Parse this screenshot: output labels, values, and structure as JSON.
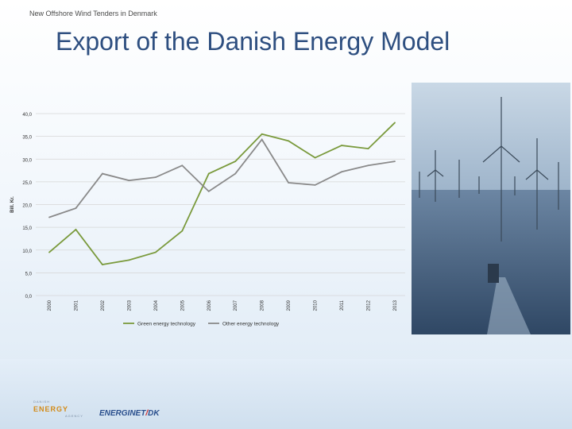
{
  "header": {
    "subtitle": "New Offshore Wind Tenders in Denmark",
    "title": "Export of the Danish Energy Model"
  },
  "chart_data": {
    "type": "line",
    "ylabel": "Bill. Kr.",
    "ylim": [
      0,
      40
    ],
    "yticks": [
      "0,0",
      "5,0",
      "10,0",
      "15,0",
      "20,0",
      "25,0",
      "30,0",
      "35,0",
      "40,0"
    ],
    "categories": [
      "2000",
      "2001",
      "2002",
      "2003",
      "2004",
      "2005",
      "2006",
      "2007",
      "2008",
      "2009",
      "2010",
      "2011",
      "2012",
      "2013"
    ],
    "legend_position": "bottom",
    "grid": true,
    "series": [
      {
        "name": "Green energy technology",
        "color": "#7a9a3c",
        "values": [
          9.5,
          14.5,
          6.8,
          7.8,
          9.5,
          14.2,
          26.8,
          29.5,
          35.5,
          34.0,
          30.3,
          33.0,
          32.3,
          38.0
        ]
      },
      {
        "name": "Other energy technology",
        "color": "#8a8a8a",
        "values": [
          17.2,
          19.2,
          26.8,
          25.3,
          26.0,
          28.6,
          22.9,
          26.8,
          34.3,
          24.8,
          24.3,
          27.2,
          28.6,
          29.5
        ]
      }
    ]
  },
  "logos": {
    "energy_agency": {
      "pre": "DANISH",
      "main": "ENERGY",
      "post": "AGENCY"
    },
    "energinet": {
      "part1": "ENERGINET",
      "part2": "DK"
    }
  }
}
